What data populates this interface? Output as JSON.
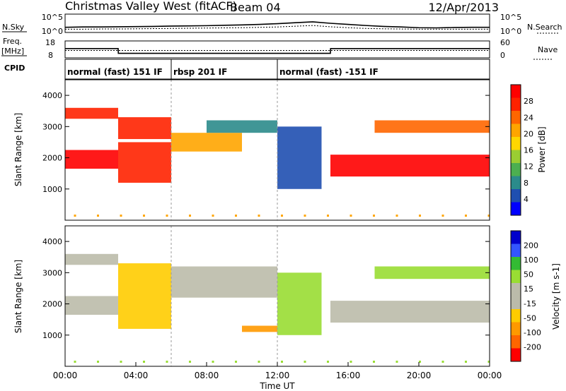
{
  "header": {
    "station": "Christmas Valley West (fitACF)",
    "beam": "Beam 04",
    "date": "12/Apr/2013"
  },
  "summary": {
    "nsky_label": "N.Sky",
    "nsky_ticks": [
      "10^5",
      "10^0"
    ],
    "nsearch_label": "N.Search",
    "freq_label_1": "Freq.",
    "freq_label_2": "[MHz]",
    "freq_ticks": [
      "18",
      "8"
    ],
    "nave_ticks": [
      "60",
      "0"
    ],
    "nave_label": "Nave",
    "cpid_label": "CPID"
  },
  "cpid_segments": [
    {
      "start": 0,
      "end": 6,
      "label": "normal (fast) 151 IF"
    },
    {
      "start": 6,
      "end": 12,
      "label": "rbsp 201 IF"
    },
    {
      "start": 12,
      "end": 24,
      "label": "normal (fast) -151 IF"
    }
  ],
  "colors": {
    "power": [
      "#0000ff",
      "#1f4fb0",
      "#2b8b8b",
      "#4caf50",
      "#9acd32",
      "#ffd700",
      "#ffa500",
      "#ff6600",
      "#ff2200",
      "#ff0000"
    ],
    "velocity": [
      "#ff0000",
      "#ff6600",
      "#ff9900",
      "#ffcc00",
      "#bbbbaa",
      "#bbbbaa",
      "#99dd33",
      "#33bb33",
      "#3355ff",
      "#0000cc"
    ]
  },
  "chart_data": [
    {
      "type": "line",
      "title": "Christmas Valley West (fitACF)",
      "ylabel": "N.Sky",
      "ylabel_right": "N.Search",
      "x": [
        0,
        1,
        2,
        3,
        4,
        5,
        6,
        7,
        8,
        9,
        10,
        11,
        12,
        13,
        14,
        15,
        16,
        17,
        18,
        19,
        20,
        21,
        22,
        23,
        24
      ],
      "series": [
        {
          "values": [
            28,
            30,
            30,
            31,
            32,
            33,
            35,
            36,
            37,
            39,
            41,
            44,
            48,
            53,
            58,
            50,
            44,
            38,
            33,
            30,
            26,
            25,
            27,
            28,
            28
          ]
        },
        {
          "values": [
            18,
            18,
            19,
            19,
            20,
            21,
            22,
            23,
            24,
            25,
            26,
            28,
            30,
            34,
            38,
            31,
            26,
            22,
            20,
            19,
            18,
            18,
            18,
            18,
            18
          ]
        }
      ],
      "ylim": [
        0,
        100
      ]
    },
    {
      "type": "line",
      "ylabel": "Freq. [MHz]",
      "ylabel_right": "Nave",
      "x": [
        0,
        3,
        3.01,
        15,
        15.01,
        24
      ],
      "series": [
        {
          "values": [
            13.5,
            13.5,
            10.7,
            10.7,
            13.5,
            13.5
          ]
        },
        {
          "values": [
            12.4,
            12.4,
            12.4,
            12.4,
            12.4,
            12.4
          ]
        }
      ],
      "ylim": [
        8,
        18
      ]
    },
    {
      "type": "heatmap",
      "ylabel": "Slant Range [km]",
      "colorbar_label": "Power [dB]",
      "colorbar_ticks": [
        "4",
        "8",
        "12",
        "16",
        "20",
        "24",
        "28"
      ],
      "xlim": [
        0,
        24
      ],
      "ylim": [
        0,
        4500
      ],
      "yticks": [
        1000,
        2000,
        3000,
        4000
      ],
      "bands": [
        {
          "t0": 0,
          "t1": 3,
          "r0": 1650,
          "r1": 2250,
          "level": 9
        },
        {
          "t0": 0,
          "t1": 3,
          "r0": 3250,
          "r1": 3600,
          "level": 8
        },
        {
          "t0": 3,
          "t1": 6,
          "r0": 1200,
          "r1": 2500,
          "level": 8
        },
        {
          "t0": 3,
          "t1": 6,
          "r0": 2600,
          "r1": 3300,
          "level": 8
        },
        {
          "t0": 6,
          "t1": 10,
          "r0": 2200,
          "r1": 2800,
          "level": 6
        },
        {
          "t0": 8,
          "t1": 12,
          "r0": 2800,
          "r1": 3200,
          "level": 2
        },
        {
          "t0": 12,
          "t1": 14.5,
          "r0": 1000,
          "r1": 3000,
          "level": 1
        },
        {
          "t0": 15,
          "t1": 24,
          "r0": 1400,
          "r1": 2100,
          "level": 9
        },
        {
          "t0": 17.5,
          "t1": 24,
          "r0": 2800,
          "r1": 3200,
          "level": 7
        }
      ]
    },
    {
      "type": "heatmap",
      "ylabel": "Slant Range [km]",
      "colorbar_label": "Velocity [m s-1]",
      "colorbar_ticks": [
        "-200",
        "-100",
        "-50",
        "-15",
        "15",
        "50",
        "100",
        "200"
      ],
      "xlim": [
        0,
        24
      ],
      "ylim": [
        0,
        4500
      ],
      "yticks": [
        1000,
        2000,
        3000,
        4000
      ],
      "xlabel": "Time UT",
      "xticks": [
        "00:00",
        "04:00",
        "08:00",
        "12:00",
        "16:00",
        "20:00",
        "00:00"
      ],
      "bands": [
        {
          "t0": 0,
          "t1": 3,
          "r0": 1650,
          "r1": 2250,
          "level": 4
        },
        {
          "t0": 0,
          "t1": 3,
          "r0": 3250,
          "r1": 3600,
          "level": 4
        },
        {
          "t0": 3,
          "t1": 6,
          "r0": 1200,
          "r1": 3300,
          "level": 3
        },
        {
          "t0": 6,
          "t1": 12,
          "r0": 2200,
          "r1": 3200,
          "level": 4
        },
        {
          "t0": 12,
          "t1": 14.5,
          "r0": 1000,
          "r1": 3000,
          "level": 6
        },
        {
          "t0": 15,
          "t1": 24,
          "r0": 1400,
          "r1": 2100,
          "level": 4
        },
        {
          "t0": 17.5,
          "t1": 24,
          "r0": 2800,
          "r1": 3200,
          "level": 6
        },
        {
          "t0": 10,
          "t1": 12,
          "r0": 1100,
          "r1": 1300,
          "level": 2
        }
      ]
    }
  ]
}
